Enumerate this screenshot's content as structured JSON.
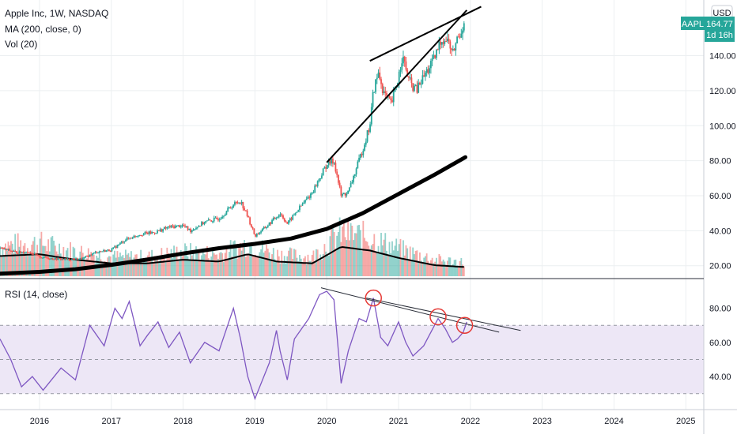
{
  "legend": {
    "main_title": "Apple Inc, 1W, NASDAQ",
    "ma_label": "MA (200, close, 0)",
    "vol_label": "Vol (20)",
    "rsi_label": "RSI (14, close)"
  },
  "badges": {
    "currency": "USD",
    "ticker": "AAPL",
    "last_price": "164.77",
    "countdown": "1d 16h"
  },
  "colors": {
    "up": "#26a69a",
    "down": "#ef5350",
    "ma": "#000000",
    "rsi": "#7e57c2",
    "rsi_band": "#ede7f6",
    "badge_ticker": "#26a69a",
    "highlight": "#e53935",
    "grid": "#eceff1",
    "axis_text": "#131722"
  },
  "chart_data": [
    {
      "type": "candlestick",
      "panel": "price",
      "x_axis": {
        "ticks": [
          "2016",
          "2017",
          "2018",
          "2019",
          "2020",
          "2021",
          "2022",
          "2023",
          "2024",
          "2025"
        ],
        "range": [
          2015.45,
          2025.25
        ]
      },
      "y_axis": {
        "ticks": [
          "20.00",
          "40.00",
          "60.00",
          "80.00",
          "100.00",
          "120.00",
          "140.00"
        ],
        "range": [
          14,
          170
        ]
      },
      "price_path": [
        [
          2015.45,
          30
        ],
        [
          2015.7,
          27.5
        ],
        [
          2015.85,
          28
        ],
        [
          2016.0,
          25
        ],
        [
          2016.2,
          24
        ],
        [
          2016.4,
          23.5
        ],
        [
          2016.6,
          24
        ],
        [
          2016.8,
          28
        ],
        [
          2017.0,
          29
        ],
        [
          2017.2,
          35
        ],
        [
          2017.4,
          38
        ],
        [
          2017.6,
          39
        ],
        [
          2017.8,
          42
        ],
        [
          2018.0,
          43
        ],
        [
          2018.1,
          40
        ],
        [
          2018.3,
          45
        ],
        [
          2018.5,
          47
        ],
        [
          2018.7,
          55
        ],
        [
          2018.8,
          57
        ],
        [
          2018.9,
          48
        ],
        [
          2019.0,
          37
        ],
        [
          2019.15,
          42
        ],
        [
          2019.35,
          50
        ],
        [
          2019.45,
          44
        ],
        [
          2019.6,
          52
        ],
        [
          2019.8,
          62
        ],
        [
          2020.0,
          78
        ],
        [
          2020.1,
          80
        ],
        [
          2020.2,
          60
        ],
        [
          2020.3,
          62
        ],
        [
          2020.45,
          80
        ],
        [
          2020.6,
          100
        ],
        [
          2020.65,
          120
        ],
        [
          2020.72,
          130
        ],
        [
          2020.8,
          118
        ],
        [
          2020.9,
          112
        ],
        [
          2021.0,
          128
        ],
        [
          2021.05,
          140
        ],
        [
          2021.15,
          125
        ],
        [
          2021.25,
          120
        ],
        [
          2021.35,
          128
        ],
        [
          2021.5,
          138
        ],
        [
          2021.6,
          150
        ],
        [
          2021.7,
          148
        ],
        [
          2021.75,
          140
        ],
        [
          2021.8,
          148
        ],
        [
          2021.88,
          155
        ],
        [
          2021.93,
          165
        ]
      ],
      "ma200": [
        [
          2015.45,
          15.5
        ],
        [
          2016.0,
          16.5
        ],
        [
          2016.5,
          18
        ],
        [
          2017.0,
          20.5
        ],
        [
          2017.5,
          23.5
        ],
        [
          2018.0,
          27
        ],
        [
          2018.5,
          30
        ],
        [
          2019.0,
          32.5
        ],
        [
          2019.5,
          35.5
        ],
        [
          2020.0,
          41
        ],
        [
          2020.5,
          50
        ],
        [
          2021.0,
          61
        ],
        [
          2021.5,
          72
        ],
        [
          2021.93,
          82
        ]
      ],
      "trendlines": [
        {
          "from": [
            2020.0,
            79
          ],
          "to": [
            2021.95,
            166
          ]
        },
        {
          "from": [
            2020.6,
            137
          ],
          "to": [
            2022.15,
            168
          ]
        }
      ]
    },
    {
      "type": "bar",
      "panel": "volume",
      "series_name": "Vol (20)",
      "profile": [
        [
          2015.45,
          0.55
        ],
        [
          2016.0,
          0.6
        ],
        [
          2016.5,
          0.45
        ],
        [
          2017.0,
          0.35
        ],
        [
          2017.5,
          0.35
        ],
        [
          2018.0,
          0.45
        ],
        [
          2018.5,
          0.4
        ],
        [
          2018.9,
          0.6
        ],
        [
          2019.3,
          0.4
        ],
        [
          2019.8,
          0.35
        ],
        [
          2020.2,
          0.8
        ],
        [
          2020.6,
          0.7
        ],
        [
          2021.0,
          0.5
        ],
        [
          2021.5,
          0.3
        ],
        [
          2021.93,
          0.25
        ]
      ]
    },
    {
      "type": "line",
      "panel": "rsi",
      "series_name": "RSI (14, close)",
      "y_axis": {
        "ticks": [
          "40.00",
          "60.00",
          "80.00"
        ],
        "range": [
          22,
          96
        ],
        "band": [
          30,
          70
        ],
        "midline": 50
      },
      "values": [
        [
          2015.45,
          62
        ],
        [
          2015.6,
          50
        ],
        [
          2015.75,
          34
        ],
        [
          2015.9,
          40
        ],
        [
          2016.05,
          32
        ],
        [
          2016.3,
          45
        ],
        [
          2016.5,
          38
        ],
        [
          2016.7,
          70
        ],
        [
          2016.9,
          58
        ],
        [
          2017.05,
          80
        ],
        [
          2017.15,
          74
        ],
        [
          2017.25,
          84
        ],
        [
          2017.4,
          58
        ],
        [
          2017.5,
          64
        ],
        [
          2017.65,
          72
        ],
        [
          2017.8,
          57
        ],
        [
          2017.95,
          66
        ],
        [
          2018.1,
          48
        ],
        [
          2018.3,
          60
        ],
        [
          2018.5,
          55
        ],
        [
          2018.7,
          80
        ],
        [
          2018.8,
          62
        ],
        [
          2018.9,
          40
        ],
        [
          2019.0,
          27
        ],
        [
          2019.2,
          48
        ],
        [
          2019.3,
          67
        ],
        [
          2019.35,
          55
        ],
        [
          2019.45,
          38
        ],
        [
          2019.55,
          62
        ],
        [
          2019.75,
          74
        ],
        [
          2019.9,
          88
        ],
        [
          2020.0,
          90
        ],
        [
          2020.1,
          85
        ],
        [
          2020.2,
          36
        ],
        [
          2020.3,
          55
        ],
        [
          2020.45,
          74
        ],
        [
          2020.55,
          72
        ],
        [
          2020.65,
          86
        ],
        [
          2020.75,
          63
        ],
        [
          2020.85,
          58
        ],
        [
          2021.0,
          72
        ],
        [
          2021.1,
          60
        ],
        [
          2021.2,
          52
        ],
        [
          2021.35,
          58
        ],
        [
          2021.45,
          66
        ],
        [
          2021.55,
          74
        ],
        [
          2021.65,
          68
        ],
        [
          2021.75,
          60
        ],
        [
          2021.82,
          62
        ],
        [
          2021.9,
          66
        ],
        [
          2021.95,
          72
        ]
      ],
      "trendlines": [
        {
          "from": [
            2019.92,
            92
          ],
          "to": [
            2022.4,
            66
          ]
        },
        {
          "from": [
            2020.55,
            86
          ],
          "to": [
            2022.7,
            67
          ]
        }
      ],
      "highlights": [
        [
          2020.65,
          86
        ],
        [
          2021.55,
          75
        ],
        [
          2021.92,
          70
        ]
      ]
    }
  ]
}
